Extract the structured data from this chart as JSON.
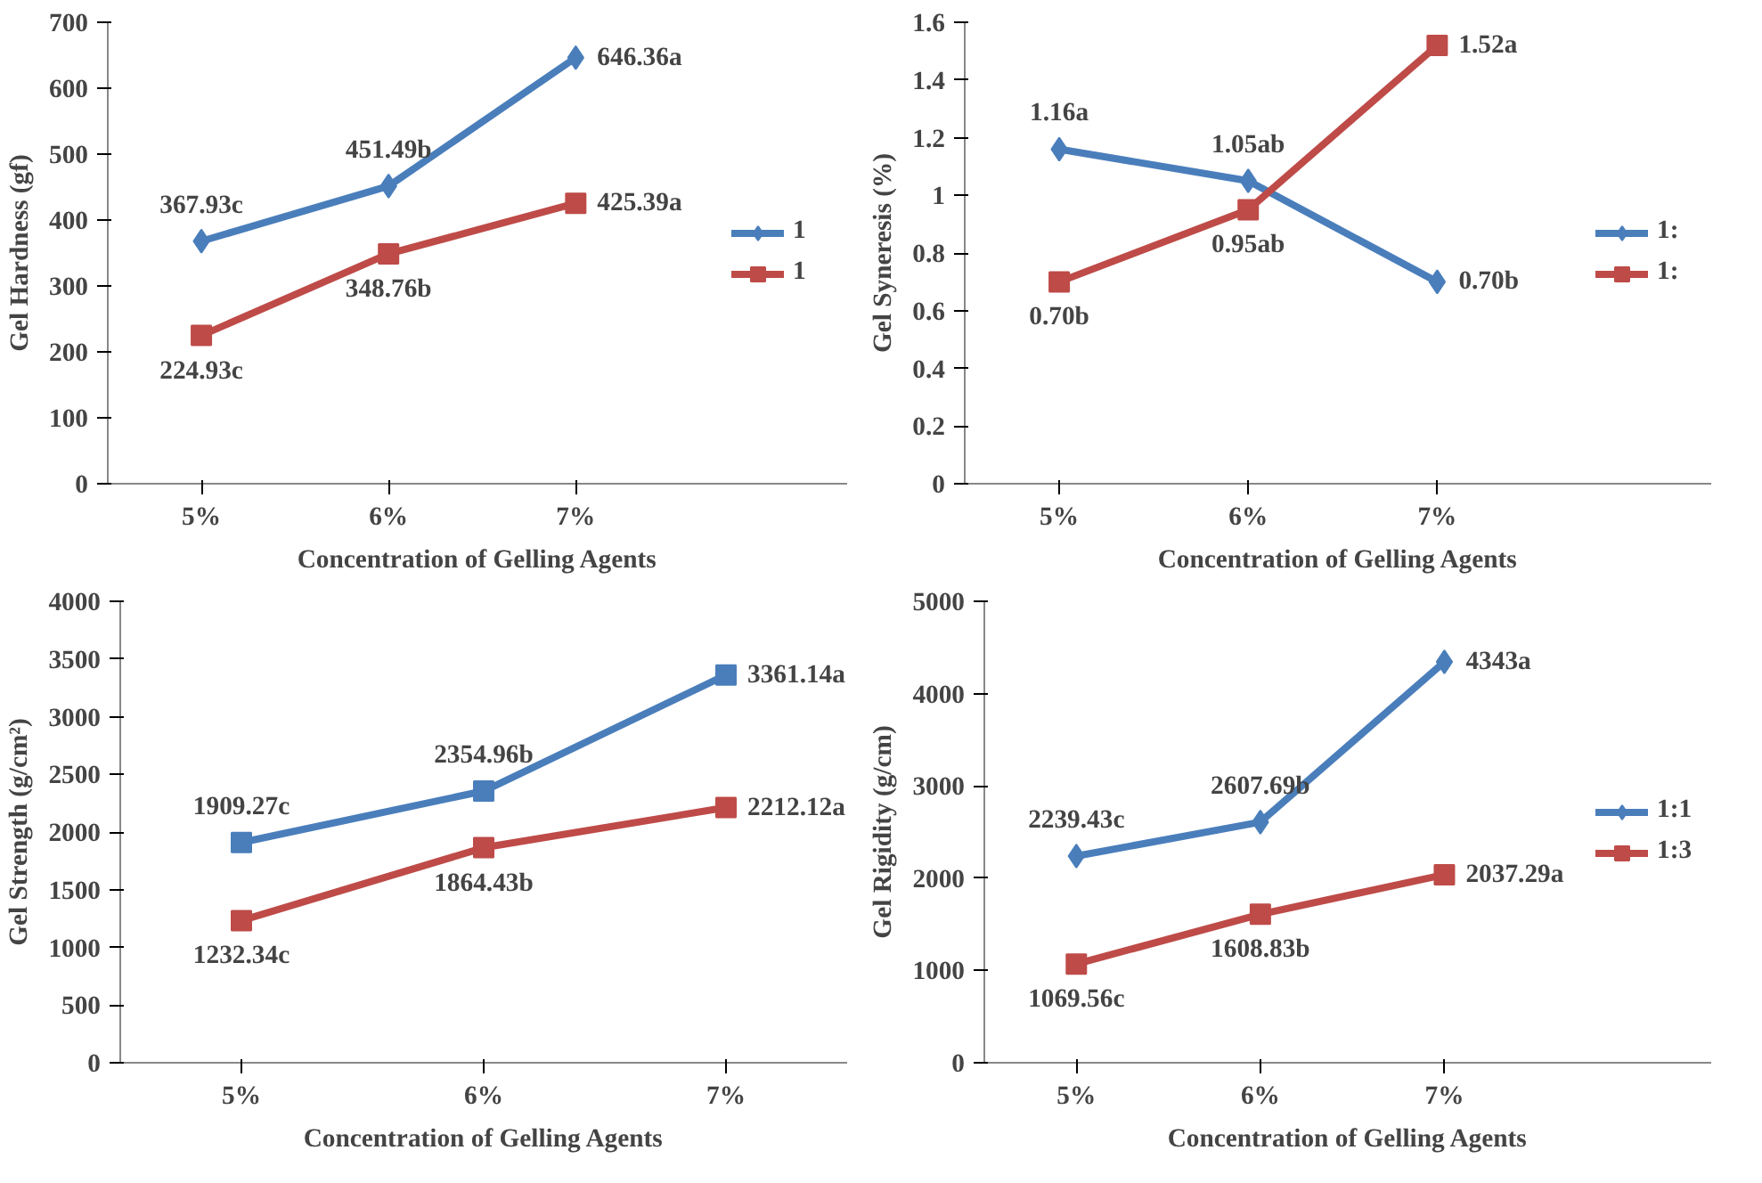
{
  "chart_data": [
    {
      "type": "line",
      "xlabel": "Concentration of Gelling Agents",
      "ylabel": "Gel Hardness (gf)",
      "categories": [
        "5%",
        "6%",
        "7%"
      ],
      "ylim": [
        0,
        700
      ],
      "yticks": [
        0,
        100,
        200,
        300,
        400,
        500,
        600,
        700
      ],
      "legend": "right",
      "grid": false,
      "series": [
        {
          "name": "1",
          "color": "#4a7ebb",
          "marker": "diamond",
          "values": [
            367.93,
            451.49,
            646.36
          ],
          "value_labels": [
            "367.93c",
            "451.49b",
            "646.36a"
          ]
        },
        {
          "name": "1",
          "color": "#be4b48",
          "marker": "square",
          "values": [
            224.93,
            348.76,
            425.39
          ],
          "value_labels": [
            "224.93c",
            "348.76b",
            "425.39a"
          ]
        }
      ]
    },
    {
      "type": "line",
      "xlabel": "Concentration of Gelling Agents",
      "ylabel": "Gel Syneresis (%)",
      "categories": [
        "5%",
        "6%",
        "7%"
      ],
      "ylim": [
        0,
        1.6
      ],
      "yticks": [
        0,
        0.2,
        0.4,
        0.6,
        0.8,
        1,
        1.2,
        1.4,
        1.6
      ],
      "legend": "right",
      "grid": false,
      "series": [
        {
          "name": "1:",
          "color": "#4a7ebb",
          "marker": "diamond",
          "values": [
            1.16,
            1.05,
            0.7
          ],
          "value_labels": [
            "1.16a",
            "1.05ab",
            "0.70b"
          ]
        },
        {
          "name": "1:",
          "color": "#be4b48",
          "marker": "square",
          "values": [
            0.7,
            0.95,
            1.52
          ],
          "value_labels": [
            "0.70b",
            "0.95ab",
            "1.52a"
          ]
        }
      ]
    },
    {
      "type": "line",
      "xlabel": "Concentration of Gelling Agents",
      "ylabel": "Gel Strength (g/cm²)",
      "categories": [
        "5%",
        "6%",
        "7%"
      ],
      "ylim": [
        0,
        4000
      ],
      "yticks": [
        0,
        500,
        1000,
        1500,
        2000,
        2500,
        3000,
        3500,
        4000
      ],
      "grid": false,
      "series": [
        {
          "color": "#4a7ebb",
          "marker": "square",
          "values": [
            1909.27,
            2354.96,
            3361.14
          ],
          "value_labels": [
            "1909.27c",
            "2354.96b",
            "3361.14a"
          ]
        },
        {
          "color": "#be4b48",
          "marker": "square",
          "values": [
            1232.34,
            1864.43,
            2212.12
          ],
          "value_labels": [
            "1232.34c",
            "1864.43b",
            "2212.12a"
          ]
        }
      ]
    },
    {
      "type": "line",
      "xlabel": "Concentration of Gelling Agents",
      "ylabel": "Gel Rigidity (g/cm)",
      "categories": [
        "5%",
        "6%",
        "7%"
      ],
      "ylim": [
        0,
        5000
      ],
      "yticks": [
        0,
        1000,
        2000,
        3000,
        4000,
        5000
      ],
      "legend": "right",
      "grid": false,
      "series": [
        {
          "name": "1:1",
          "color": "#4a7ebb",
          "marker": "diamond",
          "values": [
            2239.43,
            2607.69,
            4343
          ],
          "value_labels": [
            "2239.43c",
            "2607.69b",
            "4343a"
          ]
        },
        {
          "name": "1:3",
          "color": "#be4b48",
          "marker": "square",
          "values": [
            1069.56,
            1608.83,
            2037.29
          ],
          "value_labels": [
            "1069.56c",
            "1608.83b",
            "2037.29a"
          ]
        }
      ]
    }
  ]
}
